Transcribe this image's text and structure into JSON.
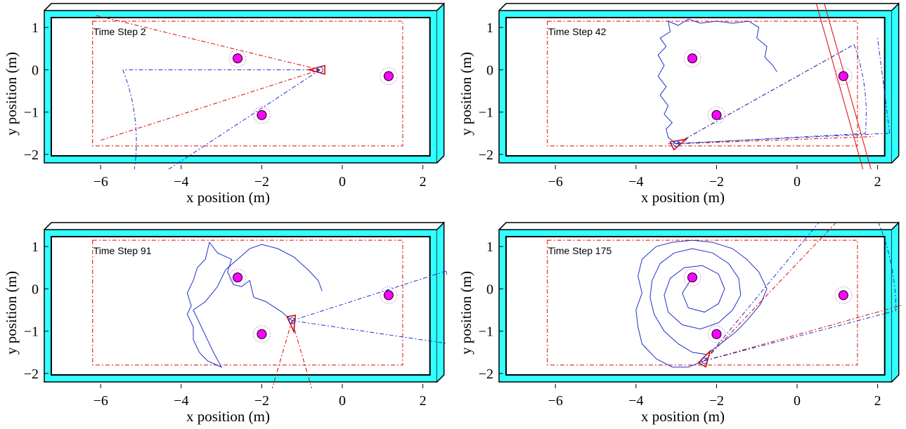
{
  "chart_data": [
    {
      "type": "scatter",
      "title": "Time Step 2",
      "xlabel": "x position (m)",
      "ylabel": "y position (m)",
      "xlim": [
        -7.4,
        2.6
      ],
      "ylim": [
        -2.35,
        1.55
      ],
      "xticks": [
        "−6",
        "−4",
        "−2",
        "0",
        "2"
      ],
      "yticks": [
        "1",
        "0",
        "−1",
        "−2"
      ],
      "landmarks": [
        [
          -2.6,
          0.27
        ],
        [
          -2.0,
          -1.07
        ],
        [
          1.15,
          -0.15
        ]
      ],
      "robot": {
        "x": -0.55,
        "y": 0.0,
        "heading_deg": 180
      },
      "fov": [
        {
          "angle_deg": 180,
          "length": 4.9
        },
        {
          "angle_deg": 212,
          "length": 5.6
        }
      ],
      "wedge": {
        "angle_deg": 182,
        "spread_deg": 30,
        "length": 5.7
      },
      "path": [
        [
          -0.55,
          0.0
        ]
      ],
      "inner_boundary": {
        "x": [
          -6.2,
          1.5
        ],
        "y": [
          -1.8,
          1.15
        ]
      },
      "outer_wall": {
        "x": [
          -7.4,
          2.35
        ],
        "y": [
          -2.2,
          1.4
        ]
      }
    },
    {
      "type": "scatter",
      "title": "Time Step 42",
      "xlabel": "x position (m)",
      "ylabel": "y position (m)",
      "xlim": [
        -7.4,
        2.6
      ],
      "ylim": [
        -2.35,
        1.55
      ],
      "xticks": [
        "−6",
        "−4",
        "−2",
        "0",
        "2"
      ],
      "yticks": [
        "1",
        "0",
        "−1",
        "−2"
      ],
      "landmarks": [
        [
          -2.6,
          0.27
        ],
        [
          -2.0,
          -1.07
        ],
        [
          1.15,
          -0.15
        ]
      ],
      "robot": {
        "x": -3.0,
        "y": -1.75,
        "heading_deg": 25
      },
      "fov": [
        {
          "angle_deg": 28,
          "length": 5.0
        },
        {
          "angle_deg": 3,
          "length": 4.7
        }
      ],
      "wedge": {
        "angle_deg": 15,
        "spread_deg": 26,
        "length": 4.9
      },
      "path": [
        [
          -3.0,
          -1.75
        ],
        [
          -3.2,
          -1.6
        ],
        [
          -3.25,
          -1.4
        ],
        [
          -3.1,
          -1.25
        ],
        [
          -3.3,
          -1.05
        ],
        [
          -3.2,
          -0.85
        ],
        [
          -3.4,
          -0.6
        ],
        [
          -3.25,
          -0.4
        ],
        [
          -3.45,
          -0.15
        ],
        [
          -3.3,
          0.1
        ],
        [
          -3.45,
          0.35
        ],
        [
          -3.25,
          0.55
        ],
        [
          -3.4,
          0.75
        ],
        [
          -3.15,
          0.9
        ],
        [
          -3.2,
          1.15
        ],
        [
          -2.95,
          1.05
        ],
        [
          -2.7,
          1.2
        ],
        [
          -2.4,
          1.1
        ],
        [
          -2.0,
          1.15
        ],
        [
          -1.6,
          1.1
        ],
        [
          -1.2,
          1.15
        ],
        [
          -0.95,
          1.0
        ],
        [
          -1.0,
          0.75
        ],
        [
          -0.75,
          0.55
        ],
        [
          -0.8,
          0.3
        ],
        [
          -0.6,
          0.1
        ],
        [
          -0.5,
          -0.05
        ]
      ],
      "extra_lines": [
        {
          "from": [
            -3.2,
            -1.75
          ],
          "to": [
            2.3,
            -1.5
          ]
        },
        {
          "from": [
            2.3,
            -1.5
          ],
          "to": [
            2.0,
            0.75
          ]
        },
        {
          "from": [
            0.35,
            2.0
          ],
          "to": [
            1.65,
            -2.4
          ]
        },
        {
          "from": [
            0.55,
            2.0
          ],
          "to": [
            1.85,
            -2.4
          ]
        }
      ],
      "inner_boundary": {
        "x": [
          -6.2,
          1.5
        ],
        "y": [
          -1.8,
          1.15
        ]
      },
      "outer_wall": {
        "x": [
          -7.4,
          2.35
        ],
        "y": [
          -2.2,
          1.4
        ]
      }
    },
    {
      "type": "scatter",
      "title": "Time Step 91",
      "xlabel": "x position (m)",
      "ylabel": "y position (m)",
      "xlim": [
        -7.4,
        2.6
      ],
      "ylim": [
        -2.35,
        1.55
      ],
      "xticks": [
        "−6",
        "−4",
        "−2",
        "0",
        "2"
      ],
      "yticks": [
        "1",
        "0",
        "−1",
        "−2"
      ],
      "landmarks": [
        [
          -2.6,
          0.27
        ],
        [
          -2.0,
          -1.07
        ],
        [
          1.15,
          -0.15
        ]
      ],
      "robot": {
        "x": -1.25,
        "y": -0.75,
        "heading_deg": 280
      },
      "fov": [
        {
          "angle_deg": 17,
          "length": 4.0
        },
        {
          "angle_deg": 352,
          "length": 4.0
        }
      ],
      "wedge": {
        "angle_deg": 270,
        "spread_deg": 34,
        "length": 3.0
      },
      "path": [
        [
          -1.25,
          -0.75
        ],
        [
          -1.5,
          -0.55
        ],
        [
          -1.9,
          -0.3
        ],
        [
          -2.2,
          -0.2
        ],
        [
          -2.3,
          0.2
        ],
        [
          -2.5,
          0.05
        ],
        [
          -2.7,
          0.1
        ],
        [
          -2.85,
          0.4
        ],
        [
          -2.75,
          0.7
        ],
        [
          -3.1,
          0.85
        ],
        [
          -3.3,
          1.1
        ],
        [
          -3.4,
          0.7
        ],
        [
          -3.6,
          0.5
        ],
        [
          -3.7,
          0.2
        ],
        [
          -3.85,
          -0.1
        ],
        [
          -3.75,
          -0.4
        ],
        [
          -3.85,
          -0.6
        ],
        [
          -3.7,
          -0.9
        ],
        [
          -3.7,
          -1.2
        ],
        [
          -3.55,
          -1.5
        ],
        [
          -3.35,
          -1.7
        ],
        [
          -3.0,
          -1.85
        ],
        [
          -3.2,
          -1.5
        ],
        [
          -3.4,
          -1.1
        ],
        [
          -3.55,
          -0.8
        ],
        [
          -3.7,
          -0.5
        ],
        [
          -3.4,
          -0.3
        ],
        [
          -3.1,
          0.05
        ],
        [
          -2.9,
          0.45
        ],
        [
          -2.6,
          0.7
        ],
        [
          -2.3,
          0.95
        ],
        [
          -2.0,
          1.05
        ],
        [
          -1.6,
          0.95
        ],
        [
          -1.2,
          0.75
        ],
        [
          -0.85,
          0.45
        ],
        [
          -0.6,
          0.2
        ],
        [
          -0.5,
          -0.05
        ]
      ],
      "inner_boundary": {
        "x": [
          -6.2,
          1.5
        ],
        "y": [
          -1.8,
          1.15
        ]
      },
      "outer_wall": {
        "x": [
          -7.4,
          2.35
        ],
        "y": [
          -2.2,
          1.4
        ]
      }
    },
    {
      "type": "scatter",
      "title": "Time Step 175",
      "xlabel": "x position (m)",
      "ylabel": "y position (m)",
      "xlim": [
        -7.4,
        2.6
      ],
      "ylim": [
        -2.35,
        1.55
      ],
      "xticks": [
        "−6",
        "−4",
        "−2",
        "0",
        "2"
      ],
      "yticks": [
        "1",
        "0",
        "−1",
        "−2"
      ],
      "landmarks": [
        [
          -2.6,
          0.27
        ],
        [
          -2.0,
          -1.07
        ],
        [
          1.15,
          -0.15
        ]
      ],
      "robot": {
        "x": -2.3,
        "y": -1.7,
        "heading_deg": 60
      },
      "fov": [
        {
          "angle_deg": 49,
          "length": 5.7
        },
        {
          "angle_deg": 14,
          "length": 4.9
        }
      ],
      "wedge": {
        "angle_deg": 30,
        "spread_deg": 30,
        "length": 5.3
      },
      "path": [
        [
          -2.3,
          -1.7
        ],
        [
          -2.7,
          -1.85
        ],
        [
          -3.1,
          -1.85
        ],
        [
          -3.5,
          -1.65
        ],
        [
          -3.85,
          -1.3
        ],
        [
          -3.95,
          -0.9
        ],
        [
          -4.0,
          -0.5
        ],
        [
          -3.85,
          -0.1
        ],
        [
          -3.95,
          0.3
        ],
        [
          -3.85,
          0.7
        ],
        [
          -3.5,
          1.0
        ],
        [
          -3.1,
          1.1
        ],
        [
          -2.6,
          1.15
        ],
        [
          -2.1,
          1.1
        ],
        [
          -1.6,
          0.95
        ],
        [
          -1.25,
          0.7
        ],
        [
          -0.95,
          0.4
        ],
        [
          -0.75,
          0.0
        ],
        [
          -0.9,
          -0.35
        ],
        [
          -1.2,
          -0.7
        ],
        [
          -1.5,
          -1.0
        ],
        [
          -1.9,
          -1.3
        ],
        [
          -2.25,
          -1.55
        ],
        [
          -2.6,
          -1.5
        ],
        [
          -2.95,
          -1.3
        ],
        [
          -3.3,
          -1.0
        ],
        [
          -3.55,
          -0.6
        ],
        [
          -3.65,
          -0.2
        ],
        [
          -3.6,
          0.2
        ],
        [
          -3.4,
          0.6
        ],
        [
          -3.05,
          0.85
        ],
        [
          -2.6,
          0.95
        ],
        [
          -2.1,
          0.85
        ],
        [
          -1.7,
          0.6
        ],
        [
          -1.45,
          0.25
        ],
        [
          -1.4,
          -0.15
        ],
        [
          -1.6,
          -0.5
        ],
        [
          -1.95,
          -0.8
        ],
        [
          -2.4,
          -0.95
        ],
        [
          -2.85,
          -0.85
        ],
        [
          -3.2,
          -0.55
        ],
        [
          -3.3,
          -0.15
        ],
        [
          -3.15,
          0.25
        ],
        [
          -2.8,
          0.5
        ],
        [
          -2.35,
          0.55
        ],
        [
          -1.95,
          0.35
        ],
        [
          -1.8,
          0.0
        ],
        [
          -1.95,
          -0.35
        ],
        [
          -2.3,
          -0.55
        ],
        [
          -2.7,
          -0.45
        ],
        [
          -2.85,
          -0.1
        ],
        [
          -2.65,
          0.2
        ]
      ],
      "inner_boundary": {
        "x": [
          -6.2,
          1.5
        ],
        "y": [
          -1.8,
          1.15
        ]
      },
      "outer_wall": {
        "x": [
          -7.4,
          2.35
        ],
        "y": [
          -2.2,
          1.4
        ]
      }
    }
  ]
}
